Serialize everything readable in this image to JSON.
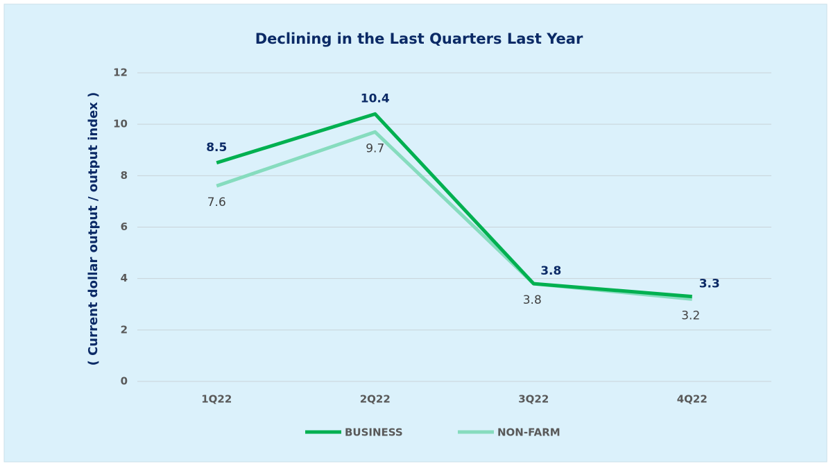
{
  "chart_data": {
    "type": "line",
    "title": "Declining in the Last Quarters Last Year",
    "y_label": "( Current dollar output / output index )",
    "categories": [
      "1Q22",
      "2Q22",
      "3Q22",
      "4Q22"
    ],
    "series": [
      {
        "name": "BUSINESS",
        "color": "#00b050",
        "values": [
          8.5,
          10.4,
          3.8,
          3.3
        ]
      },
      {
        "name": "NON-FARM",
        "color": "#86dcbe",
        "values": [
          7.6,
          9.7,
          3.8,
          3.2
        ]
      }
    ],
    "ylim": [
      0,
      12
    ],
    "yticks": [
      0,
      2,
      4,
      6,
      8,
      10,
      12
    ],
    "grid": true,
    "legend": "bottom"
  }
}
